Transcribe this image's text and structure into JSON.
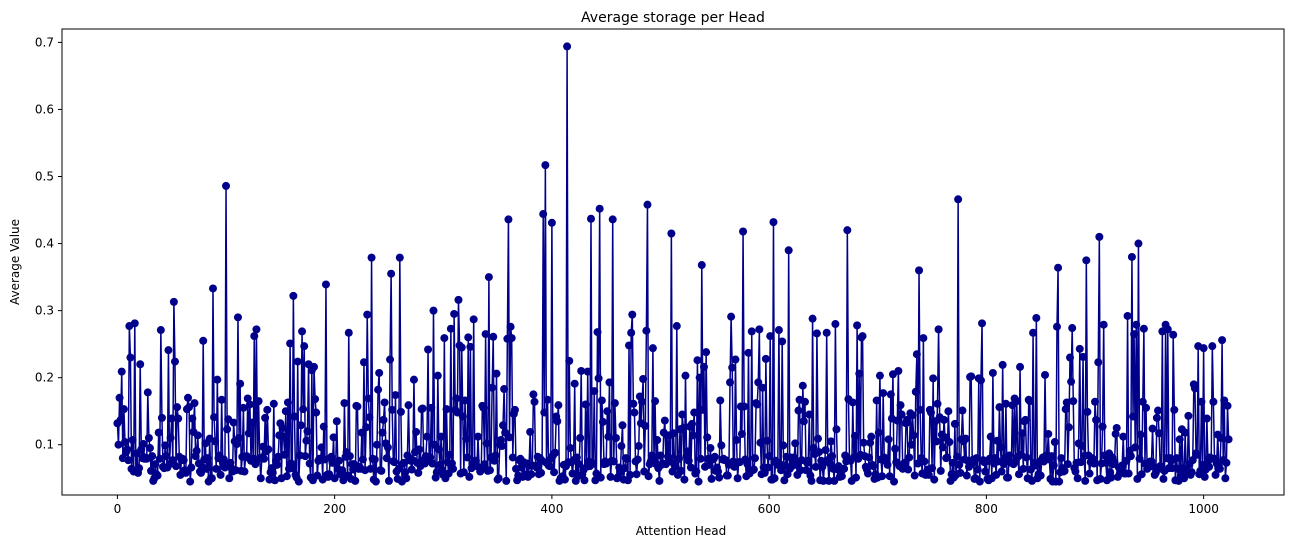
{
  "chart_data": {
    "type": "line",
    "title": "Average storage per Head",
    "xlabel": "Attention Head",
    "ylabel": "Average Value",
    "xlim": [
      -51,
      1074
    ],
    "ylim": [
      0.025,
      0.72
    ],
    "xticks": [
      0,
      200,
      400,
      600,
      800,
      1000
    ],
    "yticks": [
      0.1,
      0.2,
      0.3,
      0.4,
      0.5,
      0.6,
      0.7
    ],
    "xtick_labels": [
      "0",
      "200",
      "400",
      "600",
      "800",
      "1000"
    ],
    "ytick_labels": [
      "0.1",
      "0.2",
      "0.3",
      "0.4",
      "0.5",
      "0.6",
      "0.7"
    ],
    "grid": false,
    "marker": "circle",
    "color": "#00008b",
    "n_points": 1024,
    "notable_points": [
      {
        "x": 0,
        "y": 0.132
      },
      {
        "x": 4,
        "y": 0.209
      },
      {
        "x": 12,
        "y": 0.23
      },
      {
        "x": 28,
        "y": 0.178
      },
      {
        "x": 40,
        "y": 0.271
      },
      {
        "x": 52,
        "y": 0.313
      },
      {
        "x": 88,
        "y": 0.333
      },
      {
        "x": 100,
        "y": 0.486
      },
      {
        "x": 128,
        "y": 0.272
      },
      {
        "x": 162,
        "y": 0.322
      },
      {
        "x": 192,
        "y": 0.339
      },
      {
        "x": 234,
        "y": 0.379
      },
      {
        "x": 252,
        "y": 0.355
      },
      {
        "x": 260,
        "y": 0.379
      },
      {
        "x": 314,
        "y": 0.316
      },
      {
        "x": 342,
        "y": 0.35
      },
      {
        "x": 360,
        "y": 0.436
      },
      {
        "x": 392,
        "y": 0.444
      },
      {
        "x": 394,
        "y": 0.517
      },
      {
        "x": 400,
        "y": 0.431
      },
      {
        "x": 414,
        "y": 0.694
      },
      {
        "x": 436,
        "y": 0.437
      },
      {
        "x": 444,
        "y": 0.452
      },
      {
        "x": 456,
        "y": 0.436
      },
      {
        "x": 488,
        "y": 0.458
      },
      {
        "x": 510,
        "y": 0.415
      },
      {
        "x": 538,
        "y": 0.368
      },
      {
        "x": 576,
        "y": 0.418
      },
      {
        "x": 604,
        "y": 0.432
      },
      {
        "x": 618,
        "y": 0.39
      },
      {
        "x": 672,
        "y": 0.42
      },
      {
        "x": 738,
        "y": 0.36
      },
      {
        "x": 774,
        "y": 0.466
      },
      {
        "x": 866,
        "y": 0.364
      },
      {
        "x": 892,
        "y": 0.375
      },
      {
        "x": 904,
        "y": 0.41
      },
      {
        "x": 934,
        "y": 0.38
      },
      {
        "x": 940,
        "y": 0.4
      },
      {
        "x": 1008,
        "y": 0.247
      },
      {
        "x": 1023,
        "y": 0.108
      }
    ],
    "baseline_range": [
      0.045,
      0.17
    ]
  }
}
